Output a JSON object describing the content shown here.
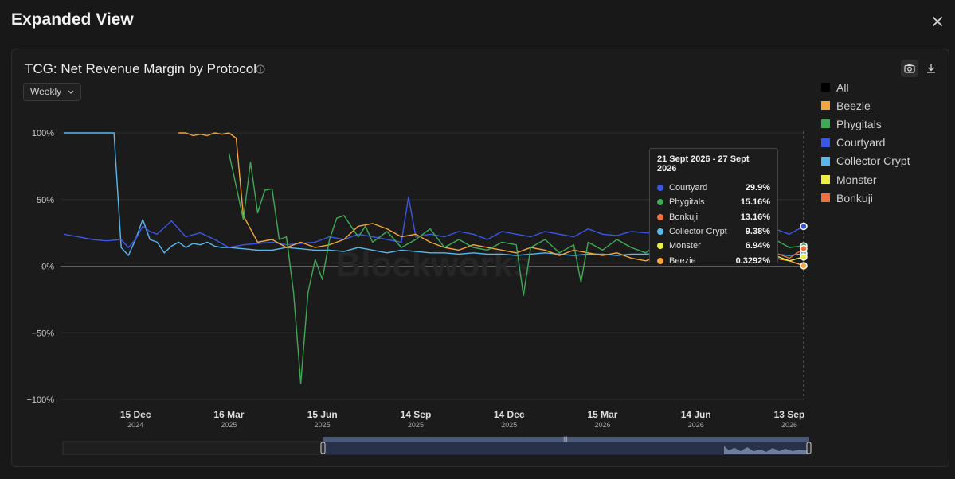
{
  "modal": {
    "title": "Expanded View"
  },
  "card": {
    "title": "TCG: Net Revenue Margin by Protocol",
    "interval": "Weekly"
  },
  "watermark": "Blockworks",
  "colors": {
    "Courtyard": "#3a56e4",
    "Phygitals": "#3faa55",
    "Bonkuji": "#f0703a",
    "Collector Crypt": "#58b8ee",
    "Monster": "#eded42",
    "Beezie": "#f4a638",
    "All": "#000000"
  },
  "legend": [
    "All",
    "Beezie",
    "Phygitals",
    "Courtyard",
    "Collector Crypt",
    "Monster",
    "Bonkuji"
  ],
  "tooltip": {
    "title": "21 Sept 2026 - 27 Sept 2026",
    "rows": [
      {
        "name": "Courtyard",
        "value": "29.9%"
      },
      {
        "name": "Phygitals",
        "value": "15.16%"
      },
      {
        "name": "Bonkuji",
        "value": "13.16%"
      },
      {
        "name": "Collector Crypt",
        "value": "9.38%"
      },
      {
        "name": "Monster",
        "value": "6.94%"
      },
      {
        "name": "Beezie",
        "value": "0.3292%"
      }
    ]
  },
  "chart_data": {
    "type": "line",
    "title": "TCG: Net Revenue Margin by Protocol",
    "x_unit": "week",
    "xlim": [
      "2024-10-06",
      "2026-09-27"
    ],
    "ylim": [
      -100,
      100
    ],
    "yticks": [
      100,
      50,
      0,
      -50,
      -100
    ],
    "ytick_labels": [
      "100%",
      "50%",
      "0%",
      "−50%",
      "−100%"
    ],
    "xticks": [
      {
        "date": "2024-12-15",
        "day": "15 Dec",
        "year": "2024"
      },
      {
        "date": "2025-03-16",
        "day": "16 Mar",
        "year": "2025"
      },
      {
        "date": "2025-06-15",
        "day": "15 Jun",
        "year": "2025"
      },
      {
        "date": "2025-09-14",
        "day": "14 Sep",
        "year": "2025"
      },
      {
        "date": "2025-12-14",
        "day": "14 Dec",
        "year": "2025"
      },
      {
        "date": "2026-03-15",
        "day": "15 Mar",
        "year": "2026"
      },
      {
        "date": "2026-06-14",
        "day": "14 Jun",
        "year": "2026"
      },
      {
        "date": "2026-09-13",
        "day": "13 Sep",
        "year": "2026"
      }
    ],
    "legend_position": "right",
    "grid": true,
    "series": [
      {
        "name": "Collector Crypt",
        "x": [
          "2024-10-06",
          "2024-10-13",
          "2024-10-20",
          "2024-10-27",
          "2024-11-03",
          "2024-11-10",
          "2024-11-17",
          "2024-11-24",
          "2024-12-01",
          "2024-12-08",
          "2024-12-15",
          "2024-12-22",
          "2024-12-29",
          "2025-01-05",
          "2025-01-12",
          "2025-01-19",
          "2025-01-26",
          "2025-02-02",
          "2025-02-09",
          "2025-02-16",
          "2025-02-23",
          "2025-03-02",
          "2025-03-09",
          "2025-03-16",
          "2025-03-30",
          "2025-04-13",
          "2025-04-27",
          "2025-05-11",
          "2025-05-25",
          "2025-06-08",
          "2025-06-22",
          "2025-07-06",
          "2025-07-20",
          "2025-08-03",
          "2025-08-17",
          "2025-08-31",
          "2025-09-14",
          "2025-09-28",
          "2025-10-12",
          "2025-10-26",
          "2025-11-09",
          "2025-11-23",
          "2025-12-07",
          "2025-12-21",
          "2026-01-04",
          "2026-01-18",
          "2026-02-01",
          "2026-02-15",
          "2026-03-01",
          "2026-03-15",
          "2026-03-29",
          "2026-04-12",
          "2026-04-26",
          "2026-05-10",
          "2026-05-24",
          "2026-06-07",
          "2026-06-21",
          "2026-07-05",
          "2026-07-19",
          "2026-08-02",
          "2026-08-16",
          "2026-08-30",
          "2026-09-13",
          "2026-09-27"
        ],
        "y": [
          100,
          100,
          100,
          100,
          100,
          100,
          100,
          100,
          14,
          8,
          20,
          35,
          20,
          18,
          10,
          15,
          18,
          14,
          17,
          16,
          18,
          15,
          14,
          14,
          13,
          12,
          12,
          14,
          13,
          12,
          12,
          11,
          14,
          12,
          10,
          12,
          11,
          10,
          10,
          9,
          10,
          9,
          9,
          8,
          9,
          10,
          9,
          8,
          9,
          9,
          8,
          9,
          9,
          10,
          9,
          8,
          9,
          10,
          8,
          9,
          8,
          9,
          8,
          9.38
        ]
      },
      {
        "name": "Courtyard",
        "x": [
          "2024-10-06",
          "2024-10-20",
          "2024-11-03",
          "2024-11-17",
          "2024-12-01",
          "2024-12-08",
          "2024-12-15",
          "2024-12-22",
          "2024-12-29",
          "2025-01-05",
          "2025-01-19",
          "2025-02-02",
          "2025-02-16",
          "2025-03-02",
          "2025-03-16",
          "2025-03-30",
          "2025-04-13",
          "2025-04-27",
          "2025-05-11",
          "2025-05-25",
          "2025-06-08",
          "2025-06-22",
          "2025-07-06",
          "2025-07-20",
          "2025-08-03",
          "2025-08-17",
          "2025-08-31",
          "2025-09-07",
          "2025-09-14",
          "2025-09-28",
          "2025-10-12",
          "2025-10-26",
          "2025-11-09",
          "2025-11-23",
          "2025-12-07",
          "2025-12-21",
          "2026-01-04",
          "2026-01-18",
          "2026-02-01",
          "2026-02-15",
          "2026-03-01",
          "2026-03-15",
          "2026-03-29",
          "2026-04-12",
          "2026-04-26",
          "2026-05-10",
          "2026-05-24",
          "2026-06-07",
          "2026-06-21",
          "2026-07-05",
          "2026-07-19",
          "2026-08-02",
          "2026-08-16",
          "2026-08-30",
          "2026-09-13",
          "2026-09-27"
        ],
        "y": [
          24,
          22,
          20,
          19,
          20,
          14,
          20,
          30,
          26,
          24,
          34,
          22,
          25,
          20,
          14,
          16,
          17,
          18,
          16,
          17,
          18,
          22,
          20,
          24,
          22,
          20,
          18,
          52,
          22,
          24,
          22,
          26,
          24,
          20,
          26,
          24,
          22,
          26,
          24,
          22,
          28,
          24,
          23,
          26,
          25,
          24,
          28,
          30,
          26,
          28,
          27,
          26,
          29,
          28,
          24,
          29.9
        ]
      },
      {
        "name": "Beezie",
        "x": [
          "2025-01-26",
          "2025-02-02",
          "2025-02-09",
          "2025-02-16",
          "2025-02-23",
          "2025-03-02",
          "2025-03-09",
          "2025-03-16",
          "2025-03-23",
          "2025-03-30",
          "2025-04-13",
          "2025-04-27",
          "2025-05-11",
          "2025-05-25",
          "2025-06-08",
          "2025-06-22",
          "2025-07-06",
          "2025-07-20",
          "2025-08-03",
          "2025-08-17",
          "2025-08-31",
          "2025-09-14",
          "2025-09-28",
          "2025-10-12",
          "2025-10-26",
          "2025-11-09",
          "2025-11-23",
          "2025-12-07",
          "2025-12-21",
          "2026-01-04",
          "2026-01-18",
          "2026-02-01",
          "2026-02-15",
          "2026-03-01",
          "2026-03-15",
          "2026-03-29",
          "2026-04-12",
          "2026-04-26",
          "2026-05-10",
          "2026-05-24",
          "2026-06-07",
          "2026-06-21",
          "2026-07-05",
          "2026-07-19",
          "2026-08-02",
          "2026-08-16",
          "2026-08-30",
          "2026-09-13",
          "2026-09-27"
        ],
        "y": [
          100,
          100,
          98,
          99,
          98,
          100,
          99,
          100,
          96,
          38,
          18,
          20,
          14,
          18,
          14,
          16,
          20,
          30,
          32,
          28,
          22,
          24,
          18,
          14,
          12,
          16,
          14,
          12,
          10,
          14,
          12,
          8,
          12,
          10,
          8,
          10,
          6,
          4,
          8,
          6,
          14,
          10,
          8,
          6,
          10,
          4,
          6,
          4,
          0.3292
        ]
      },
      {
        "name": "Phygitals",
        "x": [
          "2025-03-16",
          "2025-03-23",
          "2025-03-30",
          "2025-04-06",
          "2025-04-13",
          "2025-04-20",
          "2025-04-27",
          "2025-05-04",
          "2025-05-11",
          "2025-05-18",
          "2025-05-25",
          "2025-06-01",
          "2025-06-08",
          "2025-06-15",
          "2025-06-22",
          "2025-06-29",
          "2025-07-06",
          "2025-07-13",
          "2025-07-20",
          "2025-07-27",
          "2025-08-03",
          "2025-08-17",
          "2025-08-31",
          "2025-09-14",
          "2025-09-28",
          "2025-10-12",
          "2025-10-26",
          "2025-11-09",
          "2025-11-23",
          "2025-12-07",
          "2025-12-21",
          "2025-12-28",
          "2026-01-04",
          "2026-01-18",
          "2026-02-01",
          "2026-02-15",
          "2026-02-22",
          "2026-03-01",
          "2026-03-15",
          "2026-03-29",
          "2026-04-12",
          "2026-04-26",
          "2026-05-10",
          "2026-05-24",
          "2026-06-07",
          "2026-06-21",
          "2026-07-05",
          "2026-07-19",
          "2026-08-02",
          "2026-08-16",
          "2026-08-30",
          "2026-09-13",
          "2026-09-27"
        ],
        "y": [
          85,
          60,
          35,
          78,
          40,
          57,
          58,
          20,
          22,
          -20,
          -88,
          -20,
          5,
          -10,
          20,
          36,
          38,
          30,
          22,
          30,
          18,
          26,
          14,
          20,
          28,
          14,
          20,
          14,
          12,
          18,
          16,
          -22,
          14,
          20,
          10,
          16,
          -12,
          18,
          12,
          20,
          14,
          10,
          18,
          12,
          20,
          14,
          16,
          12,
          18,
          14,
          20,
          14,
          15.16
        ]
      },
      {
        "name": "Bonkuji",
        "x": [
          "2026-05-31",
          "2026-06-07",
          "2026-06-14",
          "2026-06-21",
          "2026-07-05",
          "2026-07-19",
          "2026-08-02",
          "2026-08-16",
          "2026-08-30",
          "2026-09-13",
          "2026-09-27"
        ],
        "y": [
          76,
          18,
          14,
          12,
          10,
          14,
          12,
          8,
          10,
          6,
          13.16
        ]
      },
      {
        "name": "Monster",
        "x": [
          "2026-05-24",
          "2026-06-07",
          "2026-06-21",
          "2026-07-05",
          "2026-07-19",
          "2026-08-02",
          "2026-08-16",
          "2026-08-30",
          "2026-09-13",
          "2026-09-27"
        ],
        "y": [
          12,
          10,
          14,
          8,
          10,
          12,
          6,
          8,
          4,
          6.94
        ]
      }
    ]
  }
}
